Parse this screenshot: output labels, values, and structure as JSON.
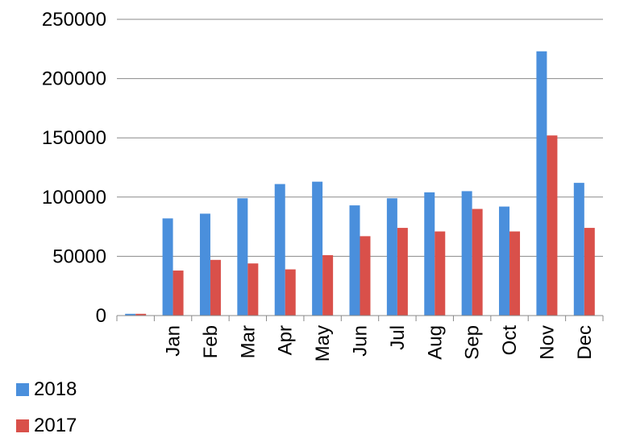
{
  "chart_data": {
    "type": "bar",
    "title": "",
    "xlabel": "",
    "ylabel": "",
    "categories": [
      "",
      "Jan",
      "Feb",
      "Mar",
      "Apr",
      "May",
      "Jun",
      "Jul",
      "Aug",
      "Sep",
      "Oct",
      "Nov",
      "Dec"
    ],
    "series": [
      {
        "name": "2018",
        "color": "#4a8fdc",
        "values": [
          1500,
          82000,
          86000,
          99000,
          111000,
          113000,
          93000,
          99000,
          104000,
          105000,
          92000,
          223000,
          112000
        ]
      },
      {
        "name": "2017",
        "color": "#d9504a",
        "values": [
          1500,
          38000,
          47000,
          44000,
          39000,
          51000,
          67000,
          74000,
          71000,
          90000,
          71000,
          152000,
          74000
        ]
      }
    ],
    "ylim": [
      0,
      250000
    ],
    "yticks": [
      0,
      50000,
      100000,
      150000,
      200000,
      250000
    ],
    "grid": true,
    "legend_position": "bottom-left"
  }
}
